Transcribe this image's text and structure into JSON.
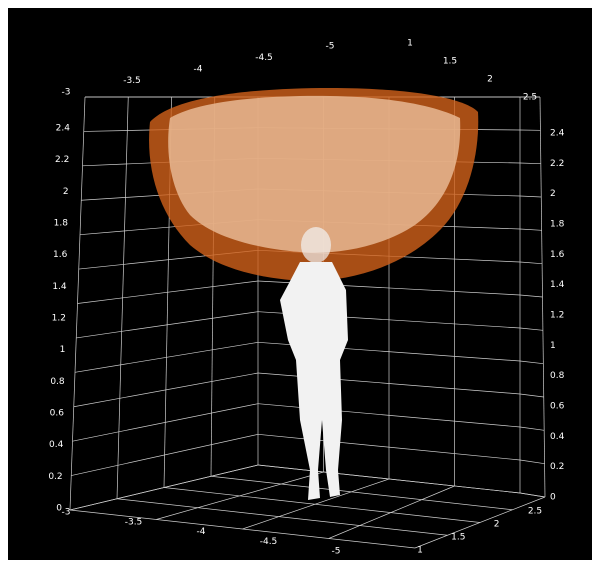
{
  "axes": {
    "z_left": [
      "2.4",
      "2.2",
      "2",
      "1.8",
      "1.6",
      "1.4",
      "1.2",
      "1",
      "0.8",
      "0.6",
      "0.4",
      "0.2",
      "0"
    ],
    "z_right": [
      "2.4",
      "2.2",
      "2",
      "1.8",
      "1.6",
      "1.4",
      "1.2",
      "1",
      "0.8",
      "0.6",
      "0.4",
      "0.2",
      "0"
    ],
    "x_top": [
      "-3",
      "-3.5",
      "-4",
      "-4.5",
      "-5"
    ],
    "y_top": [
      "1",
      "1.5",
      "2",
      "2.5"
    ],
    "x_bottom": [
      "-3",
      "-3.5",
      "-4",
      "-4.5",
      "-5"
    ],
    "y_bottom": [
      "1",
      "1.5",
      "2",
      "2.5"
    ]
  }
}
